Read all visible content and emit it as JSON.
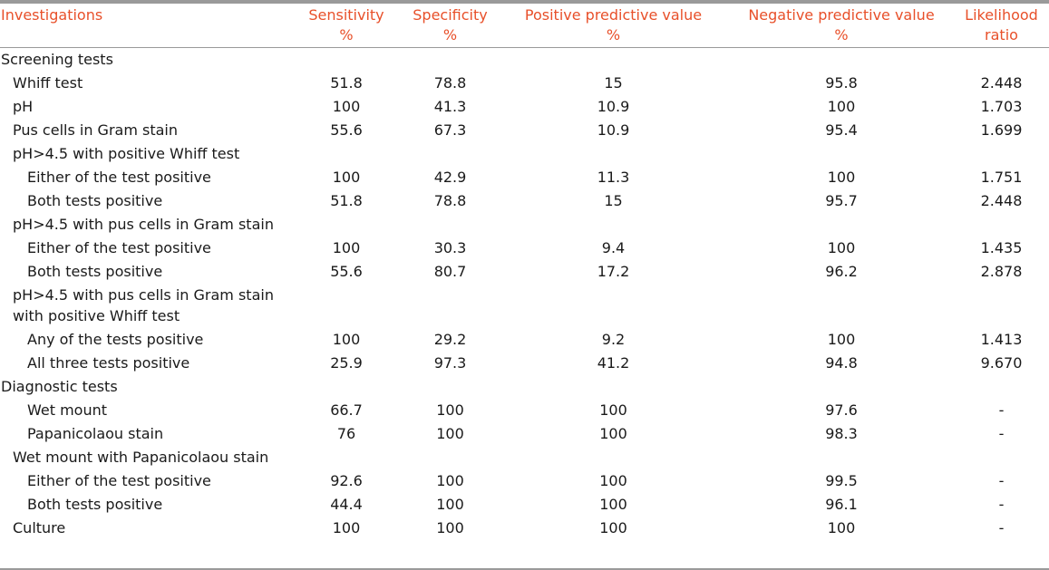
{
  "columns": [
    {
      "label_line1": "Investigations",
      "label_line2": ""
    },
    {
      "label_line1": "Sensitivity",
      "label_line2": "%"
    },
    {
      "label_line1": "Specificity",
      "label_line2": "%"
    },
    {
      "label_line1": "Positive predictive value",
      "label_line2": "%"
    },
    {
      "label_line1": "Negative predictive value",
      "label_line2": "%"
    },
    {
      "label_line1": "Likelihood",
      "label_line2": "ratio"
    }
  ],
  "rows": [
    {
      "level": 0,
      "label": "Screening tests",
      "values": [
        "",
        "",
        "",
        "",
        ""
      ]
    },
    {
      "level": 1,
      "label": "Whiff test",
      "values": [
        "51.8",
        "78.8",
        "15",
        "95.8",
        "2.448"
      ]
    },
    {
      "level": 1,
      "label": "pH",
      "values": [
        "100",
        "41.3",
        "10.9",
        "100",
        "1.703"
      ]
    },
    {
      "level": 1,
      "label": "Pus cells in Gram stain",
      "values": [
        "55.6",
        "67.3",
        "10.9",
        "95.4",
        "1.699"
      ]
    },
    {
      "level": 1,
      "label": "pH>4.5 with positive Whiff test",
      "values": [
        "",
        "",
        "",
        "",
        ""
      ]
    },
    {
      "level": 2,
      "label": "Either of the test positive",
      "values": [
        "100",
        "42.9",
        "11.3",
        "100",
        "1.751"
      ]
    },
    {
      "level": 2,
      "label": "Both tests positive",
      "values": [
        "51.8",
        "78.8",
        "15",
        "95.7",
        "2.448"
      ]
    },
    {
      "level": 1,
      "label": "pH>4.5 with pus cells in Gram stain",
      "values": [
        "",
        "",
        "",
        "",
        ""
      ]
    },
    {
      "level": 2,
      "label": "Either of the test positive",
      "values": [
        "100",
        "30.3",
        "9.4",
        "100",
        "1.435"
      ]
    },
    {
      "level": 2,
      "label": "Both tests positive",
      "values": [
        "55.6",
        "80.7",
        "17.2",
        "96.2",
        "2.878"
      ]
    },
    {
      "level": 1,
      "label": "pH>4.5 with pus cells in Gram stain with positive Whiff test",
      "values": [
        "",
        "",
        "",
        "",
        ""
      ]
    },
    {
      "level": 2,
      "label": "Any of the tests positive",
      "values": [
        "100",
        "29.2",
        "9.2",
        "100",
        "1.413"
      ]
    },
    {
      "level": 2,
      "label": "All three tests positive",
      "values": [
        "25.9",
        "97.3",
        "41.2",
        "94.8",
        "9.670"
      ]
    },
    {
      "level": 0,
      "label": "Diagnostic tests",
      "values": [
        "",
        "",
        "",
        "",
        ""
      ]
    },
    {
      "level": 2,
      "label": "Wet mount",
      "values": [
        "66.7",
        "100",
        "100",
        "97.6",
        "-"
      ]
    },
    {
      "level": 2,
      "label": "Papanicolaou stain",
      "values": [
        "76",
        "100",
        "100",
        "98.3",
        "-"
      ]
    },
    {
      "level": 1,
      "label": "Wet mount with Papanicolaou stain",
      "values": [
        "",
        "",
        "",
        "",
        ""
      ]
    },
    {
      "level": 2,
      "label": "Either of the test positive",
      "values": [
        "92.6",
        "100",
        "100",
        "99.5",
        "-"
      ]
    },
    {
      "level": 2,
      "label": "Both tests positive",
      "values": [
        "44.4",
        "100",
        "100",
        "96.1",
        "-"
      ]
    },
    {
      "level": 1,
      "label": "Culture",
      "values": [
        "100",
        "100",
        "100",
        "100",
        "-"
      ]
    }
  ]
}
